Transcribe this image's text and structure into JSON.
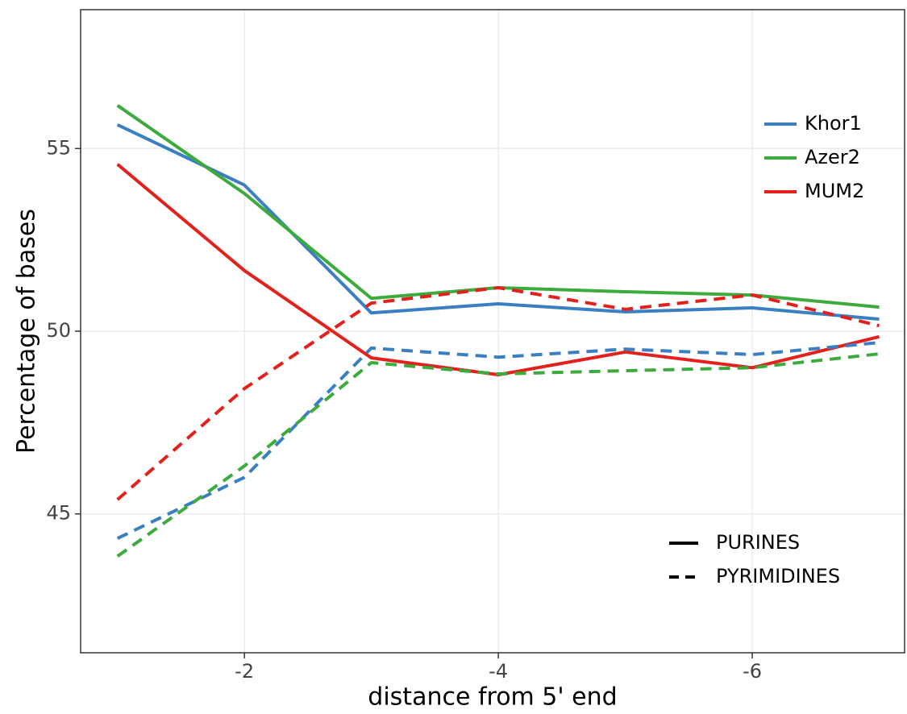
{
  "chart_data": {
    "type": "line",
    "x_label": "distance from 5' end",
    "y_label": "Percentage of bases",
    "x": [
      -1,
      -2,
      -3,
      -4,
      -5,
      -6,
      -7
    ],
    "xlim": [
      -0.71,
      -7.2
    ],
    "xticks": [
      -2,
      -4,
      -6
    ],
    "ylim": [
      41.2,
      58.8
    ],
    "yticks": [
      45,
      50,
      55
    ],
    "grid": true,
    "color_legend": [
      {
        "name": "Khor1",
        "color": "#3a7fc1"
      },
      {
        "name": "Azer2",
        "color": "#3daa3d"
      },
      {
        "name": "MUM2",
        "color": "#e3201c"
      }
    ],
    "linetype_legend": [
      {
        "name": "PURINES",
        "dash": "solid"
      },
      {
        "name": "PYRIMIDINES",
        "dash": "dashed"
      }
    ],
    "series": [
      {
        "population": "Khor1",
        "kind": "PURINES",
        "values": [
          55.65,
          54.0,
          50.5,
          50.75,
          50.53,
          50.64,
          50.33
        ]
      },
      {
        "population": "Azer2",
        "kind": "PURINES",
        "values": [
          56.18,
          53.77,
          50.9,
          51.19,
          51.08,
          50.99,
          50.66
        ]
      },
      {
        "population": "MUM2",
        "kind": "PURINES",
        "values": [
          54.57,
          51.66,
          49.27,
          48.81,
          49.43,
          49.0,
          49.85
        ]
      },
      {
        "population": "Khor1",
        "kind": "PYRIMIDINES",
        "values": [
          44.33,
          46.0,
          49.54,
          49.29,
          49.51,
          49.36,
          49.69
        ]
      },
      {
        "population": "Azer2",
        "kind": "PYRIMIDINES",
        "values": [
          43.84,
          46.31,
          49.14,
          48.83,
          48.92,
          49.0,
          49.38
        ]
      },
      {
        "population": "MUM2",
        "kind": "PYRIMIDINES",
        "values": [
          45.39,
          48.43,
          50.77,
          51.19,
          50.6,
          50.99,
          50.15
        ]
      }
    ]
  }
}
